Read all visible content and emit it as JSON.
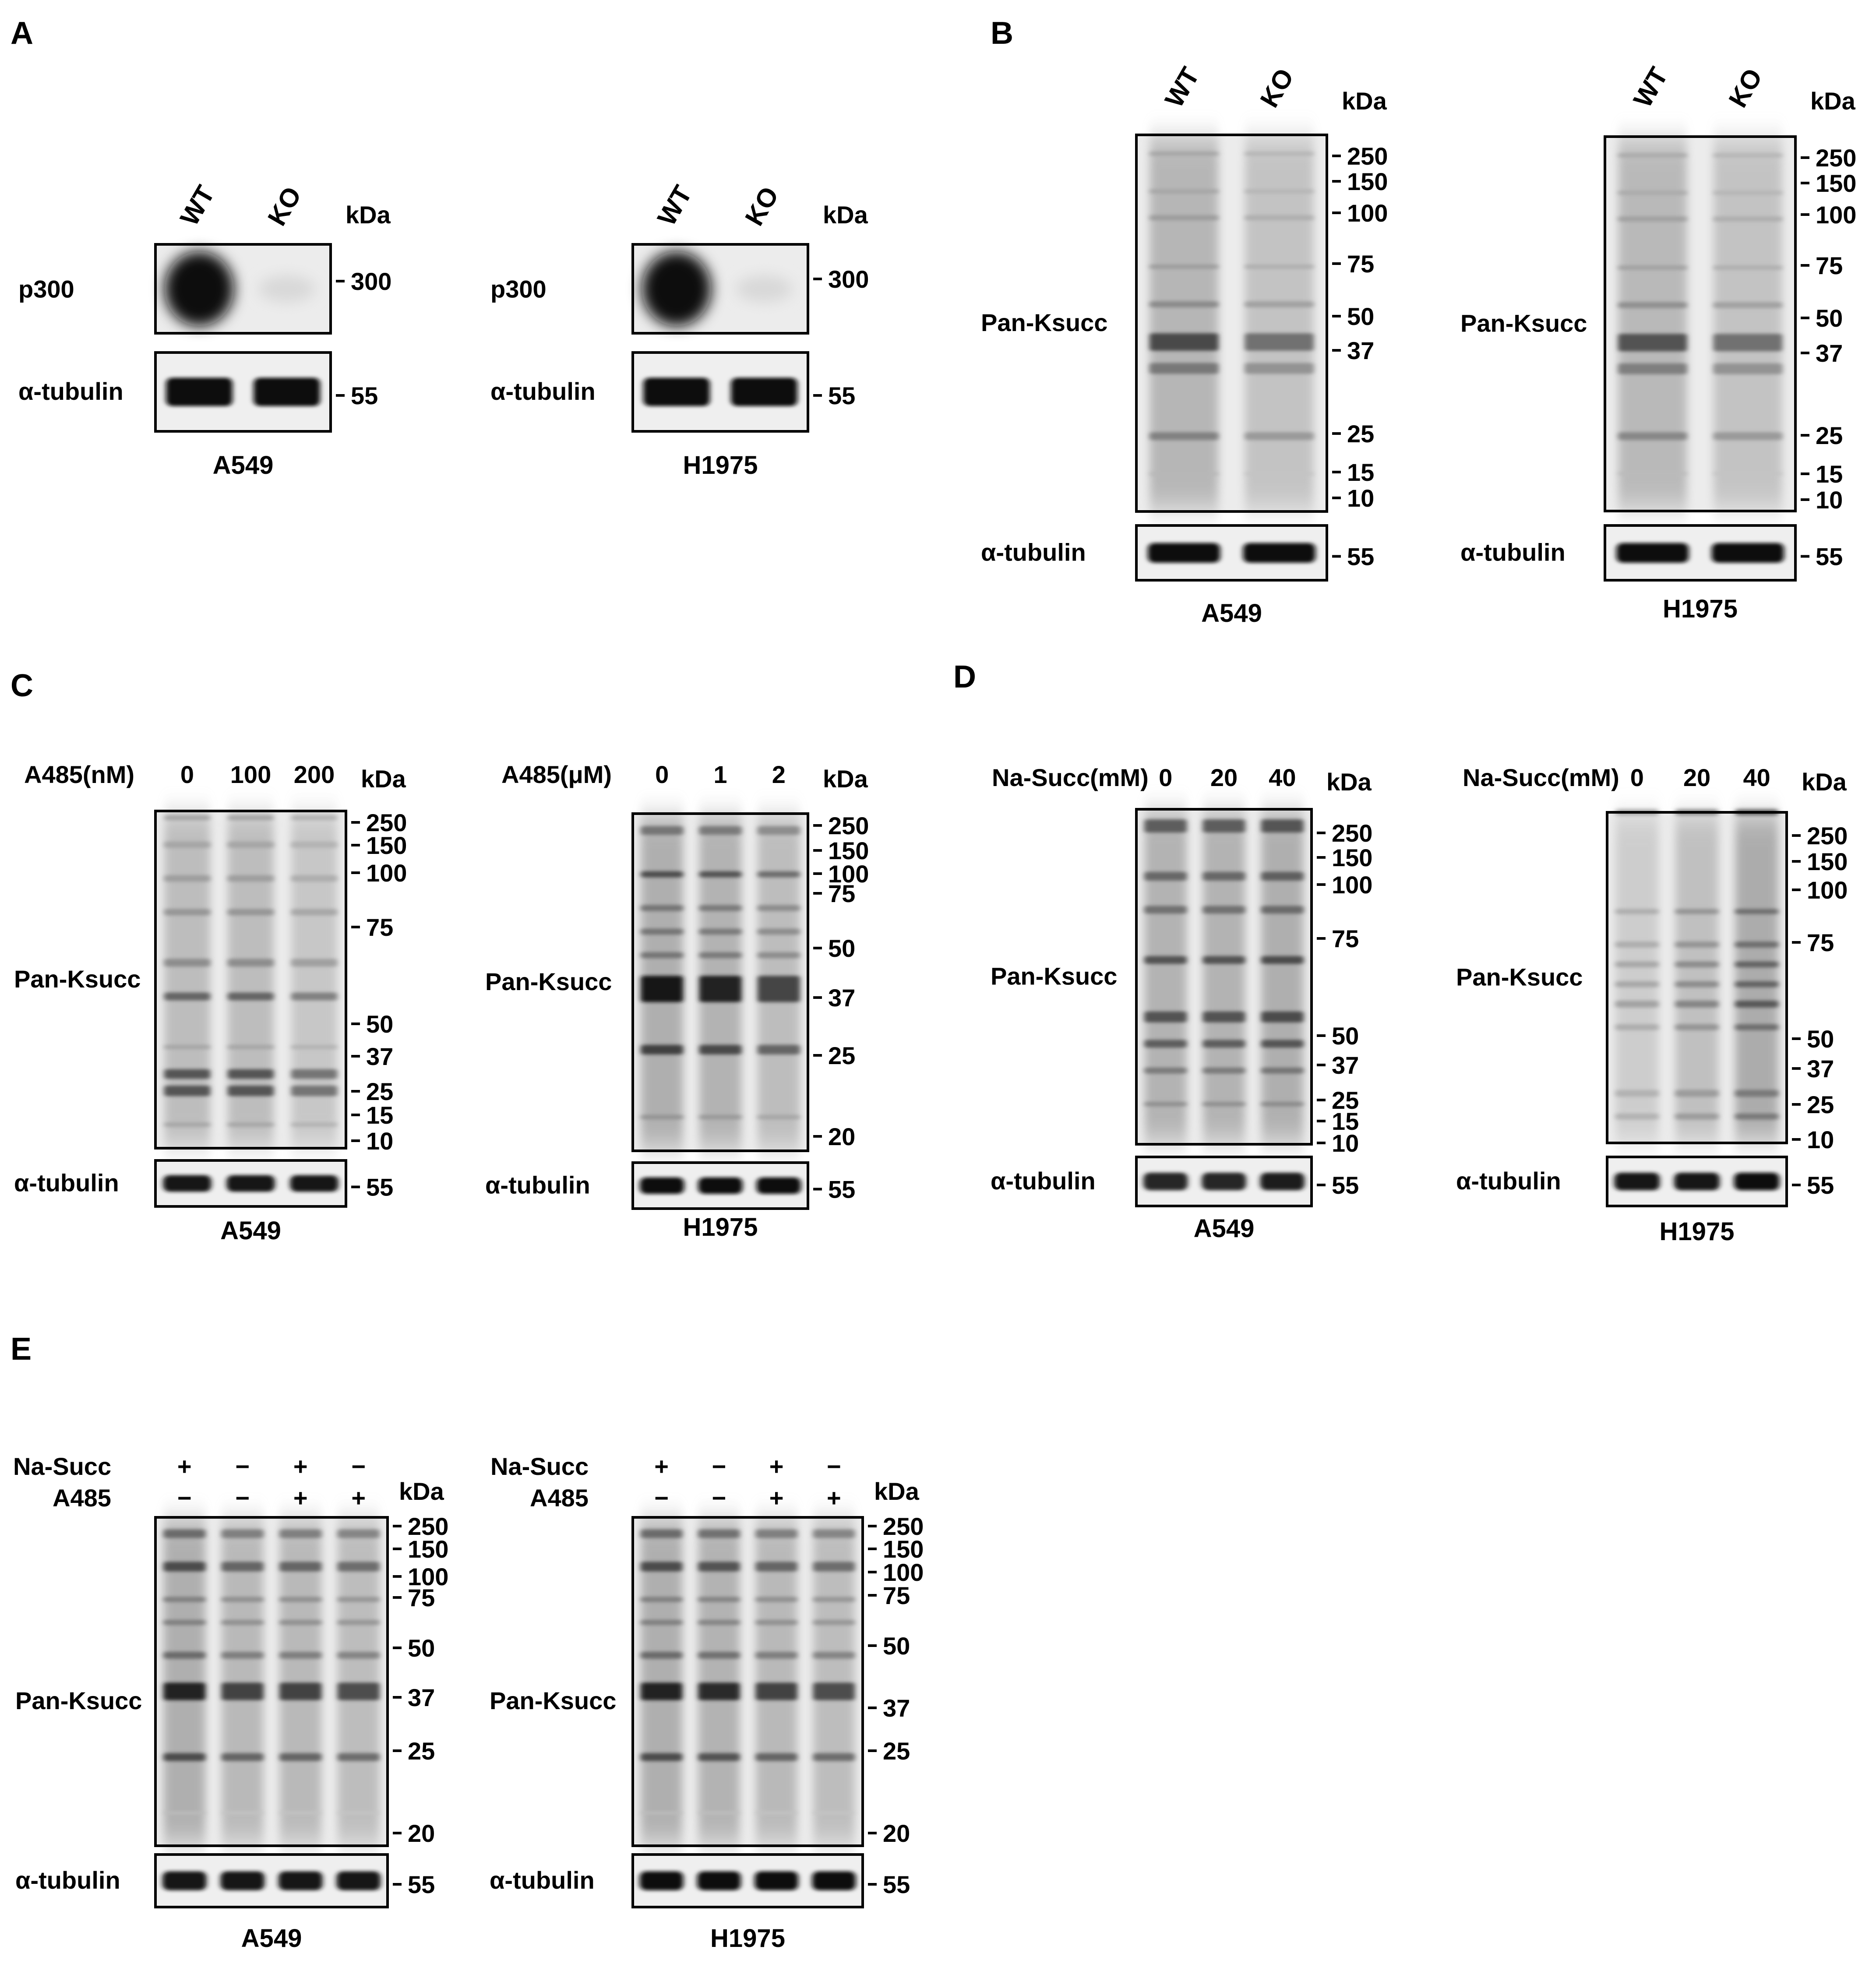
{
  "kda_label": "kDa",
  "panels": [
    {
      "letter": "A",
      "blots": [
        {
          "lane_header_label": "",
          "lanes": [
            "WT",
            "KO"
          ],
          "rotated_lanes": true,
          "main": {
            "label": "p300",
            "markers": [
              "300"
            ],
            "lane_intensity": [
              1.0,
              0.05
            ]
          },
          "loading": {
            "label": "α-tubulin",
            "marker": "55",
            "lane_intensity": [
              0.95,
              0.95
            ]
          },
          "cell_line": "A549"
        },
        {
          "lane_header_label": "",
          "lanes": [
            "WT",
            "KO"
          ],
          "rotated_lanes": true,
          "main": {
            "label": "p300",
            "markers": [
              "300"
            ],
            "lane_intensity": [
              1.0,
              0.05
            ]
          },
          "loading": {
            "label": "α-tubulin",
            "marker": "55",
            "lane_intensity": [
              0.95,
              0.95
            ]
          },
          "cell_line": "H1975"
        }
      ]
    },
    {
      "letter": "B",
      "blots": [
        {
          "lane_header_label": "",
          "lanes": [
            "WT",
            "KO"
          ],
          "rotated_lanes": true,
          "main": {
            "label": "Pan-Ksucc",
            "markers": [
              "250",
              "150",
              "100",
              "75",
              "50",
              "37",
              "25",
              "15",
              "10"
            ],
            "lane_intensity": [
              0.8,
              0.6
            ]
          },
          "loading": {
            "label": "α-tubulin",
            "marker": "55",
            "lane_intensity": [
              0.95,
              0.95
            ]
          },
          "cell_line": "A549"
        },
        {
          "lane_header_label": "",
          "lanes": [
            "WT",
            "KO"
          ],
          "rotated_lanes": true,
          "main": {
            "label": "Pan-Ksucc",
            "markers": [
              "250",
              "150",
              "100",
              "75",
              "50",
              "37",
              "25",
              "15",
              "10"
            ],
            "lane_intensity": [
              0.75,
              0.6
            ]
          },
          "loading": {
            "label": "α-tubulin",
            "marker": "55",
            "lane_intensity": [
              0.95,
              0.95
            ]
          },
          "cell_line": "H1975"
        }
      ]
    },
    {
      "letter": "C",
      "blots": [
        {
          "lane_header_label": "A485(nM)",
          "lanes": [
            "0",
            "100",
            "200"
          ],
          "rotated_lanes": false,
          "main": {
            "label": "Pan-Ksucc",
            "markers": [
              "250",
              "150",
              "100",
              "75",
              "50",
              "37",
              "25",
              "15",
              "10"
            ],
            "lane_intensity": [
              0.7,
              0.7,
              0.55
            ]
          },
          "loading": {
            "label": "α-tubulin",
            "marker": "55",
            "lane_intensity": [
              0.9,
              0.9,
              0.9
            ]
          },
          "cell_line": "A549"
        },
        {
          "lane_header_label": "A485(μM)",
          "lanes": [
            "0",
            "1",
            "2"
          ],
          "rotated_lanes": false,
          "main": {
            "label": "Pan-Ksucc",
            "markers": [
              "250",
              "150",
              "100",
              "75",
              "50",
              "37",
              "25",
              "20"
            ],
            "lane_intensity": [
              0.9,
              0.85,
              0.7
            ]
          },
          "loading": {
            "label": "α-tubulin",
            "marker": "55",
            "lane_intensity": [
              0.95,
              0.95,
              0.95
            ]
          },
          "cell_line": "H1975"
        }
      ]
    },
    {
      "letter": "D",
      "blots": [
        {
          "lane_header_label": "Na-Succ(mM)",
          "lanes": [
            "0",
            "20",
            "40"
          ],
          "rotated_lanes": false,
          "main": {
            "label": "Pan-Ksucc",
            "markers": [
              "250",
              "150",
              "100",
              "75",
              "50",
              "37",
              "25",
              "15",
              "10"
            ],
            "lane_intensity": [
              0.85,
              0.85,
              0.9
            ]
          },
          "loading": {
            "label": "α-tubulin",
            "marker": "55",
            "lane_intensity": [
              0.8,
              0.8,
              0.85
            ]
          },
          "cell_line": "A549"
        },
        {
          "lane_header_label": "Na-Succ(mM)",
          "lanes": [
            "0",
            "20",
            "40"
          ],
          "rotated_lanes": false,
          "main": {
            "label": "Pan-Ksucc",
            "markers": [
              "250",
              "150",
              "100",
              "75",
              "50",
              "37",
              "25",
              "10"
            ],
            "lane_intensity": [
              0.45,
              0.65,
              0.95
            ]
          },
          "loading": {
            "label": "α-tubulin",
            "marker": "55",
            "lane_intensity": [
              0.9,
              0.9,
              0.95
            ]
          },
          "cell_line": "H1975"
        }
      ]
    },
    {
      "letter": "E",
      "blots": [
        {
          "treatment_rows": [
            {
              "name": "Na-Succ",
              "signs": [
                "+",
                "−",
                "+",
                "−"
              ]
            },
            {
              "name": "A485",
              "signs": [
                "−",
                "−",
                "+",
                "+"
              ]
            }
          ],
          "lanes": [
            "",
            "",
            "",
            ""
          ],
          "main": {
            "label": "Pan-Ksucc",
            "markers": [
              "250",
              "150",
              "100",
              "75",
              "50",
              "37",
              "25",
              "20"
            ],
            "lane_intensity": [
              0.9,
              0.75,
              0.75,
              0.7
            ]
          },
          "loading": {
            "label": "α-tubulin",
            "marker": "55",
            "lane_intensity": [
              0.9,
              0.9,
              0.9,
              0.9
            ]
          },
          "cell_line": "A549"
        },
        {
          "treatment_rows": [
            {
              "name": "Na-Succ",
              "signs": [
                "+",
                "−",
                "+",
                "−"
              ]
            },
            {
              "name": "A485",
              "signs": [
                "−",
                "−",
                "+",
                "+"
              ]
            }
          ],
          "lanes": [
            "",
            "",
            "",
            ""
          ],
          "main": {
            "label": "Pan-Ksucc",
            "markers": [
              "250",
              "150",
              "100",
              "75",
              "50",
              "37",
              "25",
              "20"
            ],
            "lane_intensity": [
              0.9,
              0.85,
              0.75,
              0.7
            ]
          },
          "loading": {
            "label": "α-tubulin",
            "marker": "55",
            "lane_intensity": [
              0.95,
              0.95,
              0.95,
              0.95
            ]
          },
          "cell_line": "H1975"
        }
      ]
    }
  ]
}
